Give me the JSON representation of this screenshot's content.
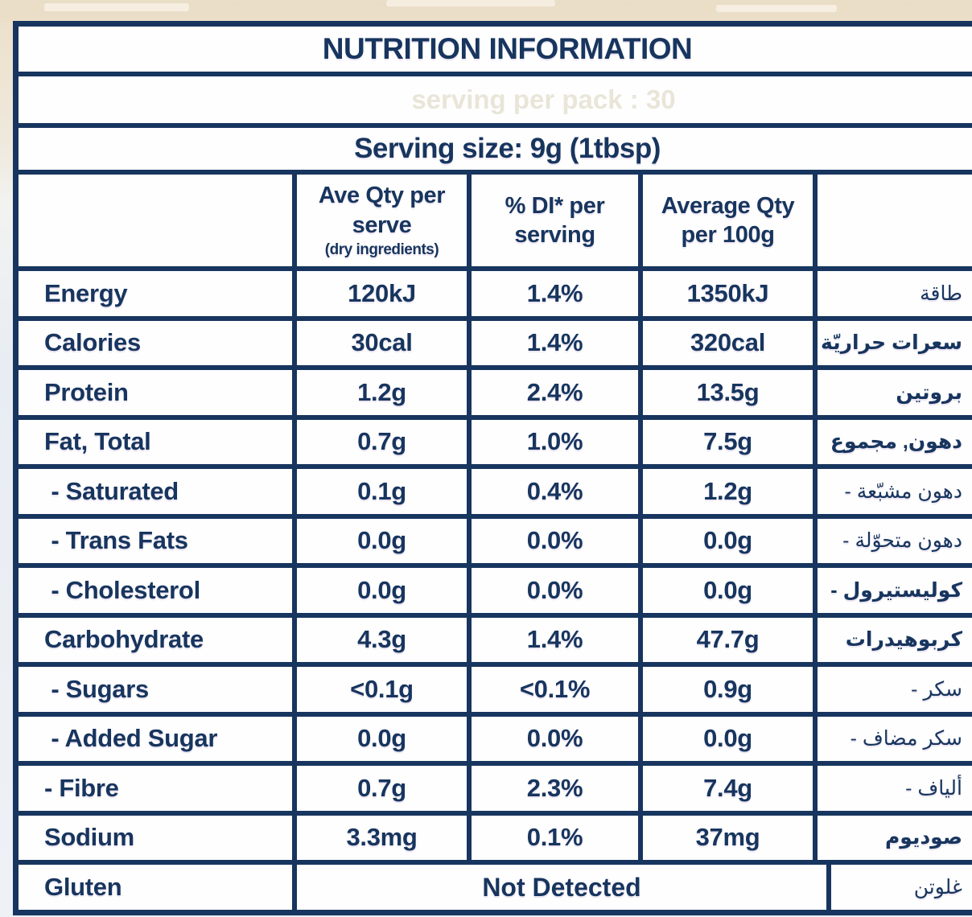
{
  "colors": {
    "navy": "#17355e",
    "cell_bg": "#fefefe",
    "top_background_beige": "#e9ddc6",
    "bottom_background_blue_white": "#e9edf3"
  },
  "header": {
    "title": "NUTRITION INFORMATION",
    "ghost_text": "serving per pack : 30",
    "serving_size": "Serving size: 9g (1tbsp)"
  },
  "columns": {
    "per_serve_label": "Ave Qty per\nserve",
    "per_serve_note": "(dry ingredients)",
    "di_label": "% DI* per\nserving",
    "per_100g_label": "Average Qty\nper 100g"
  },
  "rows": [
    {
      "name": "Energy",
      "serve": "120kJ",
      "di": "1.4%",
      "per100": "1350kJ",
      "ar": "طاقة",
      "ar_bold": false
    },
    {
      "name": "Calories",
      "serve": "30cal",
      "di": "1.4%",
      "per100": "320cal",
      "ar": "سعرات حراريّة",
      "ar_bold": true
    },
    {
      "name": "Protein",
      "serve": "1.2g",
      "di": "2.4%",
      "per100": "13.5g",
      "ar": "بروتين",
      "ar_bold": true
    },
    {
      "name": "Fat, Total",
      "serve": "0.7g",
      "di": "1.0%",
      "per100": "7.5g",
      "ar": "دهون, مجموع",
      "ar_bold": true
    },
    {
      "name": " - Saturated",
      "serve": "0.1g",
      "di": "0.4%",
      "per100": "1.2g",
      "ar": "- دهون مشبّعة",
      "ar_bold": false
    },
    {
      "name": " - Trans Fats",
      "serve": "0.0g",
      "di": "0.0%",
      "per100": "0.0g",
      "ar": "- دهون متحوّلة",
      "ar_bold": false
    },
    {
      "name": " - Cholesterol",
      "serve": "0.0g",
      "di": "0.0%",
      "per100": "0.0g",
      "ar": "- كوليستيرول",
      "ar_bold": true
    },
    {
      "name": "Carbohydrate",
      "serve": "4.3g",
      "di": "1.4%",
      "per100": "47.7g",
      "ar": "كربوهيدرات",
      "ar_bold": true
    },
    {
      "name": " - Sugars",
      "serve": "<0.1g",
      "di": "<0.1%",
      "per100": "0.9g",
      "ar": "- سكر",
      "ar_bold": false
    },
    {
      "name": " - Added Sugar",
      "serve": "0.0g",
      "di": "0.0%",
      "per100": "0.0g",
      "ar": "- سكر مضاف",
      "ar_bold": false
    },
    {
      "name": "- Fibre",
      "serve": "0.7g",
      "di": "2.3%",
      "per100": "7.4g",
      "ar": "- ألياف",
      "ar_bold": false
    },
    {
      "name": "Sodium",
      "serve": "3.3mg",
      "di": "0.1%",
      "per100": "37mg",
      "ar": "صوديوم",
      "ar_bold": true
    }
  ],
  "gluten_row": {
    "name": "Gluten",
    "value": "Not Detected",
    "ar": "غلوتن",
    "ar_bold": false
  }
}
